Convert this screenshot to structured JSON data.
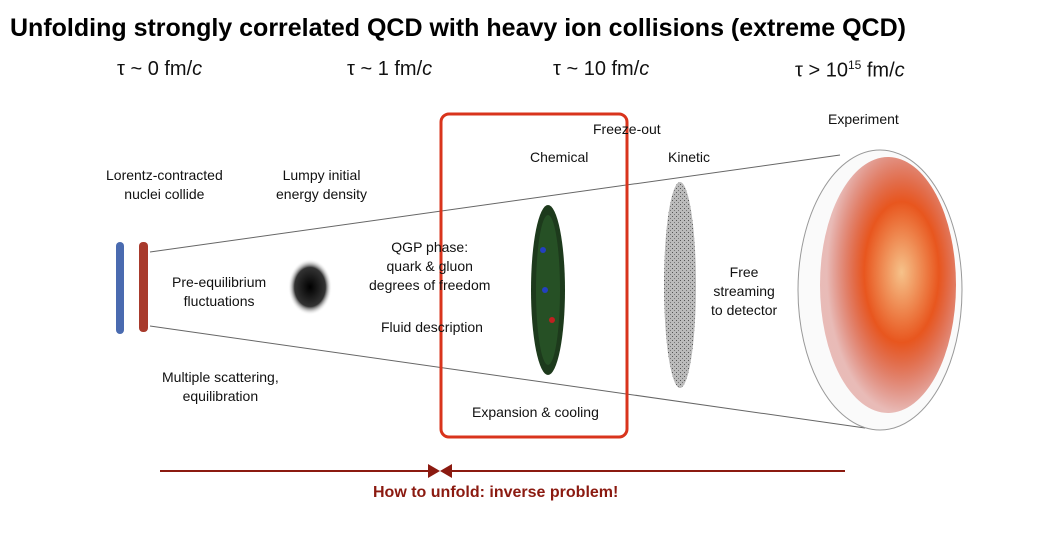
{
  "title": "Unfolding strongly correlated QCD with heavy ion collisions (extreme QCD)",
  "timescales": [
    {
      "prefix": "τ ~ 0 fm/",
      "unit": "c"
    },
    {
      "prefix": "τ ~ 1 fm/",
      "unit": "c"
    },
    {
      "prefix": "τ ~ 10 fm/",
      "unit": "c"
    },
    {
      "prefix": "τ > 10",
      "sup": "15",
      "mid": " fm/",
      "unit": "c"
    }
  ],
  "labels": {
    "nuclei": [
      "Lorentz-contracted",
      "nuclei collide"
    ],
    "lumpy": [
      "Lumpy initial",
      "energy density"
    ],
    "pre_eq": [
      "Pre-equilibrium",
      "fluctuations"
    ],
    "scattering": [
      "Multiple scattering,",
      "equilibration"
    ],
    "qgp": [
      "QGP phase:",
      "quark & gluon",
      "degrees of freedom"
    ],
    "fluid": "Fluid description",
    "freeze_out": "Freeze-out",
    "chemical": "Chemical",
    "kinetic": "Kinetic",
    "free": [
      "Free",
      "streaming",
      "to detector"
    ],
    "experiment": "Experiment",
    "expansion": "Expansion & cooling"
  },
  "bottom_text": "How to unfold: inverse problem!",
  "colors": {
    "highlight": "#d9341c",
    "arrow": "#8b1a10"
  }
}
